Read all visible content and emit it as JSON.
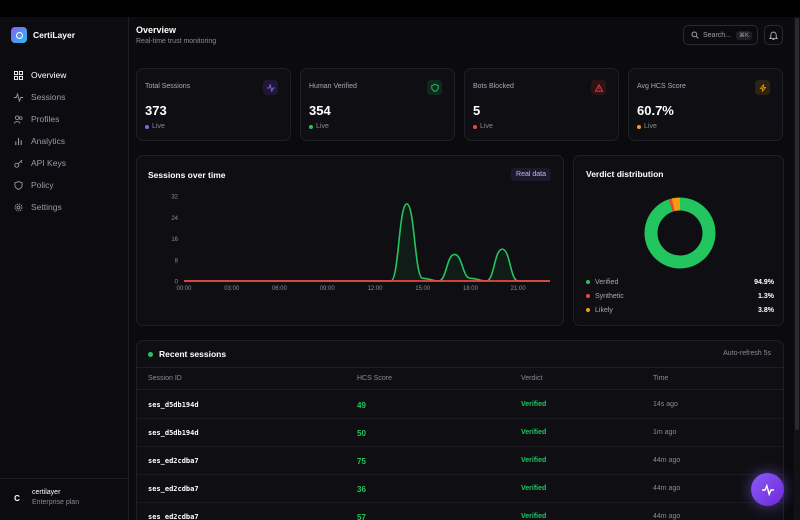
{
  "brand": {
    "name": "CertiLayer"
  },
  "sidebar": {
    "items": [
      {
        "label": "Overview",
        "icon": "grid-icon",
        "active": true
      },
      {
        "label": "Sessions",
        "icon": "activity-icon"
      },
      {
        "label": "Profiles",
        "icon": "users-icon"
      },
      {
        "label": "Analytics",
        "icon": "bar-chart-icon"
      },
      {
        "label": "API Keys",
        "icon": "key-icon"
      },
      {
        "label": "Policy",
        "icon": "shield-icon"
      },
      {
        "label": "Settings",
        "icon": "gear-icon"
      }
    ],
    "user": {
      "initial": "C",
      "name": "certilayer",
      "plan": "Enterprise plan"
    }
  },
  "header": {
    "title": "Overview",
    "subtitle": "Real-time trust monitoring",
    "search_placeholder": "Search...",
    "search_shortcut": "⌘K"
  },
  "stats": [
    {
      "label": "Total Sessions",
      "value": "373",
      "status": "Live",
      "icon": "activity-icon",
      "color": "#8b5cf6"
    },
    {
      "label": "Human Verified",
      "value": "354",
      "status": "Live",
      "icon": "shield-icon",
      "color": "#22c55e"
    },
    {
      "label": "Bots Blocked",
      "value": "5",
      "status": "Live",
      "icon": "alert-triangle-icon",
      "color": "#ef4444"
    },
    {
      "label": "Avg HCS Score",
      "value": "60.7%",
      "status": "Live",
      "icon": "zap-icon",
      "color": "#f59e0b"
    }
  ],
  "sessions_chart": {
    "title": "Sessions over time",
    "badge": "Real data"
  },
  "chart_data": [
    {
      "type": "area",
      "title": "Sessions over time",
      "x_ticks": [
        "00:00",
        "03:00",
        "06:00",
        "09:00",
        "12:00",
        "15:00",
        "18:00",
        "21:00"
      ],
      "y_ticks": [
        0,
        8,
        16,
        24,
        32
      ],
      "ylim": [
        0,
        32
      ],
      "xlim_hours": [
        0,
        23
      ],
      "series": [
        {
          "color": "#22c55e",
          "x_hours": [
            0,
            1,
            2,
            3,
            4,
            5,
            6,
            7,
            8,
            9,
            10,
            11,
            12,
            13,
            14,
            15,
            16,
            17,
            18,
            19,
            20,
            21,
            22,
            23
          ],
          "values": [
            0,
            0,
            0,
            0,
            0,
            0,
            0,
            0,
            0,
            0,
            0,
            0,
            0,
            0,
            29,
            1,
            0,
            10,
            1,
            0,
            12,
            0,
            0,
            0
          ]
        },
        {
          "color": "#ef4444",
          "x_hours": [
            0,
            1,
            2,
            3,
            4,
            5,
            6,
            7,
            8,
            9,
            10,
            11,
            12,
            13,
            14,
            15,
            16,
            17,
            18,
            19,
            20,
            21,
            22,
            23
          ],
          "values": [
            0,
            0,
            0,
            0,
            0,
            0,
            0,
            0,
            0,
            0,
            0,
            0,
            0,
            0,
            0,
            0,
            0,
            0,
            0,
            0,
            0,
            0,
            0,
            0
          ]
        }
      ]
    },
    {
      "type": "pie",
      "title": "Verdict distribution",
      "categories": [
        "Verified",
        "Synthetic",
        "Likely"
      ],
      "values": [
        94.9,
        1.3,
        3.8
      ],
      "labels": [
        "94.9%",
        "1.3%",
        "3.8%"
      ],
      "colors": [
        "#22c55e",
        "#ef4444",
        "#f59e0b"
      ]
    }
  ],
  "verdict_card": {
    "title": "Verdict distribution"
  },
  "recent": {
    "title": "Recent sessions",
    "auto_refresh": "Auto-refresh 5s",
    "columns": [
      "Session ID",
      "HCS Score",
      "Verdict",
      "Time"
    ],
    "rows": [
      {
        "id": "ses_d5db194d",
        "score": "49",
        "verdict": "Verified",
        "time": "14s ago"
      },
      {
        "id": "ses_d5db194d",
        "score": "50",
        "verdict": "Verified",
        "time": "1m ago"
      },
      {
        "id": "ses_ed2cdba7",
        "score": "75",
        "verdict": "Verified",
        "time": "44m ago"
      },
      {
        "id": "ses_ed2cdba7",
        "score": "36",
        "verdict": "Verified",
        "time": "44m ago"
      },
      {
        "id": "ses_ed2cdba7",
        "score": "57",
        "verdict": "Verified",
        "time": "44m ago"
      }
    ]
  }
}
